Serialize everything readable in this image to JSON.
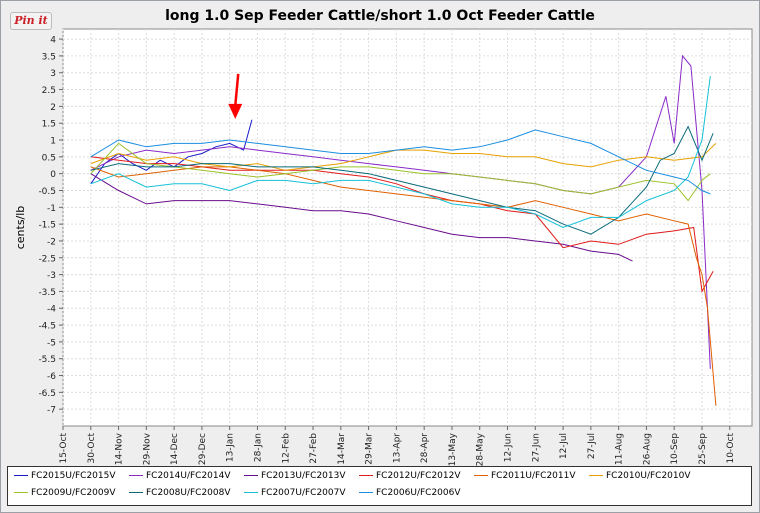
{
  "pin_label": "Pin it",
  "chart_data": {
    "type": "line",
    "title": "long 1.0 Sep Feeder Cattle/short 1.0 Oct Feeder Cattle",
    "ylabel": "cents/lb",
    "xlabel": "",
    "ylim": [
      -7.5,
      4.3
    ],
    "yticks": [
      4,
      3.5,
      3,
      2.5,
      2,
      1.5,
      1,
      0.5,
      0,
      -0.5,
      -1,
      -1.5,
      -2,
      -2.5,
      -3,
      -3.5,
      -4,
      -4.5,
      -5,
      -5.5,
      -6,
      -6.5,
      -7
    ],
    "xlim": [
      0,
      24.8
    ],
    "categories": [
      "15-Oct",
      "30-Oct",
      "14-Nov",
      "29-Nov",
      "14-Dec",
      "29-Dec",
      "13-Jan",
      "28-Jan",
      "12-Feb",
      "27-Feb",
      "14-Mar",
      "29-Mar",
      "13-Apr",
      "28-Apr",
      "13-May",
      "28-May",
      "12-Jun",
      "27-Jun",
      "12-Jul",
      "27-Jul",
      "11-Aug",
      "26-Aug",
      "10-Sep",
      "25-Sep",
      "10-Oct"
    ],
    "grid": true,
    "legend_position": "bottom",
    "series": [
      {
        "name": "FC2015U/FC2015V",
        "color": "#1a1ac8",
        "x": [
          1.0,
          1.5,
          2.0,
          2.5,
          3.0,
          3.5,
          4.0,
          4.5,
          5.0,
          5.5,
          6.0,
          6.5,
          6.8
        ],
        "y": [
          -0.3,
          0.3,
          0.6,
          0.3,
          0.1,
          0.4,
          0.2,
          0.5,
          0.6,
          0.8,
          0.9,
          0.7,
          1.6
        ]
      },
      {
        "name": "FC2014U/FC2014V",
        "color": "#8a2bc8",
        "x": [
          1.0,
          2.0,
          3.0,
          4.0,
          5.0,
          6.0,
          7.0,
          8.0,
          9.0,
          10.0,
          11.0,
          12.0,
          13.0,
          14.0,
          15.0,
          16.0,
          17.0,
          18.0,
          19.0,
          20.0,
          21.0,
          21.7,
          22.0,
          22.3,
          22.6,
          23.0,
          23.3
        ],
        "y": [
          0.1,
          0.5,
          0.7,
          0.6,
          0.7,
          0.8,
          0.7,
          0.6,
          0.5,
          0.4,
          0.3,
          0.2,
          0.1,
          0.0,
          -0.1,
          -0.2,
          -0.3,
          -0.5,
          -0.6,
          -0.4,
          0.5,
          2.3,
          0.9,
          3.5,
          3.2,
          -0.5,
          -5.8
        ]
      },
      {
        "name": "FC2013U/FC2013V",
        "color": "#6a0c8c",
        "x": [
          1.0,
          2.0,
          3.0,
          4.0,
          5.0,
          6.0,
          7.0,
          8.0,
          9.0,
          10.0,
          11.0,
          12.0,
          13.0,
          14.0,
          15.0,
          16.0,
          17.0,
          18.0,
          19.0,
          20.0,
          20.5
        ],
        "y": [
          0.0,
          -0.5,
          -0.9,
          -0.8,
          -0.8,
          -0.8,
          -0.9,
          -1.0,
          -1.1,
          -1.1,
          -1.2,
          -1.4,
          -1.6,
          -1.8,
          -1.9,
          -1.9,
          -2.0,
          -2.1,
          -2.3,
          -2.4,
          -2.6
        ]
      },
      {
        "name": "FC2012U/FC2012V",
        "color": "#e01a1a",
        "x": [
          1.0,
          2.0,
          3.0,
          4.0,
          5.0,
          6.0,
          7.0,
          8.0,
          9.0,
          10.0,
          11.0,
          12.0,
          13.0,
          14.0,
          15.0,
          16.0,
          17.0,
          18.0,
          19.0,
          20.0,
          21.0,
          22.0,
          22.7,
          23.0,
          23.4
        ],
        "y": [
          0.5,
          0.4,
          0.3,
          0.3,
          0.2,
          0.1,
          0.1,
          0.1,
          0.1,
          0.0,
          -0.1,
          -0.3,
          -0.6,
          -0.8,
          -0.9,
          -1.1,
          -1.2,
          -2.2,
          -2.0,
          -2.1,
          -1.8,
          -1.7,
          -1.6,
          -3.5,
          -2.9
        ]
      },
      {
        "name": "FC2011U/FC2011V",
        "color": "#e06000",
        "x": [
          1.0,
          2.0,
          3.0,
          4.0,
          5.0,
          6.0,
          7.0,
          8.0,
          9.0,
          10.0,
          11.0,
          12.0,
          13.0,
          14.0,
          15.0,
          16.0,
          17.0,
          18.0,
          19.0,
          20.0,
          21.0,
          22.0,
          22.5,
          22.8,
          23.0,
          23.2,
          23.5
        ],
        "y": [
          0.2,
          -0.1,
          0.0,
          0.1,
          0.2,
          0.2,
          0.1,
          0.0,
          -0.2,
          -0.4,
          -0.5,
          -0.6,
          -0.7,
          -0.8,
          -0.9,
          -1.0,
          -0.8,
          -1.0,
          -1.2,
          -1.4,
          -1.2,
          -1.4,
          -1.5,
          -2.5,
          -3.0,
          -4.0,
          -6.9
        ]
      },
      {
        "name": "FC2010U/FC2010V",
        "color": "#e8a000",
        "x": [
          1.0,
          2.0,
          3.0,
          4.0,
          5.0,
          6.0,
          7.0,
          8.0,
          9.0,
          10.0,
          11.0,
          12.0,
          13.0,
          14.0,
          15.0,
          16.0,
          17.0,
          18.0,
          19.0,
          20.0,
          21.0,
          22.0,
          23.0,
          23.5
        ],
        "y": [
          0.3,
          0.6,
          0.4,
          0.5,
          0.3,
          0.2,
          0.3,
          0.1,
          0.2,
          0.3,
          0.5,
          0.7,
          0.7,
          0.6,
          0.6,
          0.5,
          0.5,
          0.3,
          0.2,
          0.4,
          0.5,
          0.4,
          0.5,
          0.9
        ]
      },
      {
        "name": "FC2009U/FC2009V",
        "color": "#9bc22a",
        "x": [
          1.0,
          2.0,
          3.0,
          4.0,
          5.0,
          6.0,
          7.0,
          8.0,
          9.0,
          10.0,
          11.0,
          12.0,
          13.0,
          14.0,
          15.0,
          16.0,
          17.0,
          18.0,
          19.0,
          20.0,
          21.0,
          22.0,
          22.5,
          23.0,
          23.3
        ],
        "y": [
          0.0,
          0.9,
          0.3,
          0.2,
          0.1,
          0.0,
          -0.1,
          0.0,
          0.1,
          0.2,
          0.2,
          0.1,
          0.0,
          0.0,
          -0.1,
          -0.2,
          -0.3,
          -0.5,
          -0.6,
          -0.4,
          -0.2,
          -0.3,
          -0.8,
          -0.2,
          0.0
        ]
      },
      {
        "name": "FC2008U/FC2008V",
        "color": "#0a6a7a",
        "x": [
          1.0,
          2.0,
          3.0,
          4.0,
          5.0,
          6.0,
          7.0,
          8.0,
          9.0,
          10.0,
          11.0,
          12.0,
          13.0,
          14.0,
          15.0,
          16.0,
          17.0,
          18.0,
          19.0,
          20.0,
          21.0,
          21.5,
          22.0,
          22.5,
          23.0,
          23.4
        ],
        "y": [
          0.1,
          0.3,
          0.2,
          0.2,
          0.3,
          0.3,
          0.2,
          0.2,
          0.2,
          0.1,
          0.0,
          -0.2,
          -0.4,
          -0.6,
          -0.8,
          -1.0,
          -1.1,
          -1.5,
          -1.8,
          -1.3,
          -0.4,
          0.4,
          0.6,
          1.4,
          0.4,
          1.2
        ]
      },
      {
        "name": "FC2007U/FC2007V",
        "color": "#16c0d8",
        "x": [
          1.0,
          2.0,
          3.0,
          4.0,
          5.0,
          6.0,
          7.0,
          8.0,
          9.0,
          10.0,
          11.0,
          12.0,
          13.0,
          14.0,
          15.0,
          16.0,
          17.0,
          18.0,
          19.0,
          20.0,
          21.0,
          22.0,
          22.5,
          23.0,
          23.3
        ],
        "y": [
          -0.3,
          0.0,
          -0.4,
          -0.3,
          -0.3,
          -0.5,
          -0.2,
          -0.2,
          -0.3,
          -0.2,
          -0.2,
          -0.4,
          -0.6,
          -0.9,
          -1.0,
          -1.0,
          -1.2,
          -1.6,
          -1.3,
          -1.3,
          -0.8,
          -0.5,
          -0.1,
          1.0,
          2.9
        ]
      },
      {
        "name": "FC2006U/FC2006V",
        "color": "#1a8ee0",
        "x": [
          1.0,
          2.0,
          3.0,
          4.0,
          5.0,
          6.0,
          7.0,
          8.0,
          9.0,
          10.0,
          11.0,
          12.0,
          13.0,
          14.0,
          15.0,
          16.0,
          17.0,
          18.0,
          19.0,
          20.0,
          21.0,
          22.0,
          22.5,
          23.0,
          23.3
        ],
        "y": [
          0.5,
          1.0,
          0.8,
          0.9,
          0.9,
          1.0,
          0.9,
          0.8,
          0.7,
          0.6,
          0.6,
          0.7,
          0.8,
          0.7,
          0.8,
          1.0,
          1.3,
          1.1,
          0.9,
          0.5,
          0.1,
          -0.1,
          -0.2,
          -0.5,
          -0.6
        ]
      }
    ],
    "annotation": {
      "type": "arrow",
      "color": "#ff0000",
      "x": 6.2,
      "y": 1.6
    }
  }
}
